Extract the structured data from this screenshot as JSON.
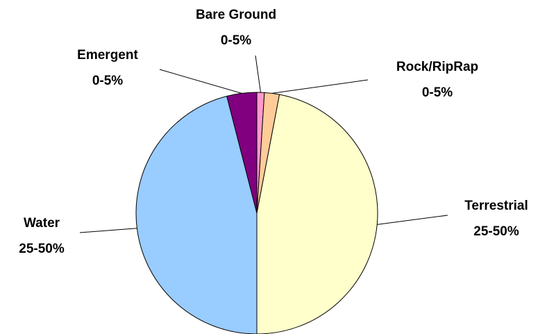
{
  "chart_data": {
    "type": "pie",
    "categories": [
      "Bare Ground",
      "Rock/RipRap",
      "Terrestrial",
      "Water",
      "Emergent"
    ],
    "values": [
      1,
      2,
      47,
      46,
      4
    ],
    "value_labels": [
      "0-5%",
      "0-5%",
      "25-50%",
      "25-50%",
      "0-5%"
    ],
    "colors": [
      "#ff99cc",
      "#ffcc99",
      "#ffffcc",
      "#99ccff",
      "#800080"
    ]
  }
}
